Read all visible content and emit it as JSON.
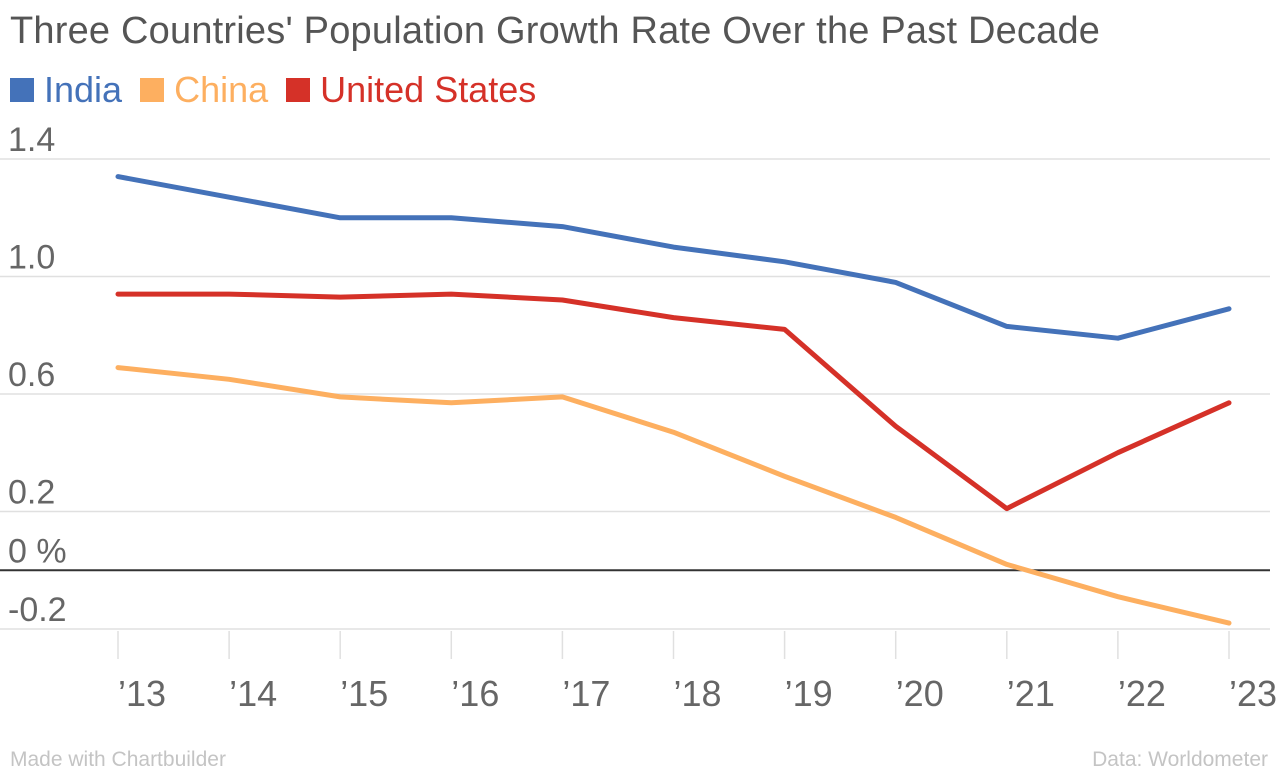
{
  "title": "Three Countries' Population Growth Rate Over the Past Decade",
  "footer": {
    "made_with": "Made with Chartbuilder",
    "source": "Data: Worldometer"
  },
  "colors": {
    "India": "#4472b9",
    "China": "#fdaf60",
    "United States": "#d53128",
    "grid": "#e0e0e0",
    "zero_line": "#333333",
    "tick_text": "#666666"
  },
  "chart_data": {
    "type": "line",
    "title": "Three Countries' Population Growth Rate Over the Past Decade",
    "xlabel": "",
    "ylabel": "",
    "categories": [
      "’13",
      "’14",
      "’15",
      "’16",
      "’17",
      "’18",
      "’19",
      "’20",
      "’21",
      "’22",
      "’23"
    ],
    "series": [
      {
        "name": "India",
        "color": "#4472b9",
        "values": [
          1.34,
          1.27,
          1.2,
          1.2,
          1.17,
          1.1,
          1.05,
          0.98,
          0.83,
          0.79,
          0.89
        ]
      },
      {
        "name": "China",
        "color": "#fdaf60",
        "values": [
          0.69,
          0.65,
          0.59,
          0.57,
          0.59,
          0.47,
          0.32,
          0.18,
          0.02,
          -0.09,
          -0.18
        ]
      },
      {
        "name": "United States",
        "color": "#d53128",
        "values": [
          0.94,
          0.94,
          0.93,
          0.94,
          0.92,
          0.86,
          0.82,
          0.49,
          0.21,
          0.4,
          0.57
        ]
      }
    ],
    "y_ticks": [
      {
        "value": 1.4,
        "label": "1.4"
      },
      {
        "value": 1.0,
        "label": "1.0"
      },
      {
        "value": 0.6,
        "label": "0.6"
      },
      {
        "value": 0.2,
        "label": "0.2"
      },
      {
        "value": 0,
        "label": "0 %"
      },
      {
        "value": -0.2,
        "label": "-0.2"
      }
    ],
    "ylim": [
      -0.2,
      1.4
    ],
    "grid": true,
    "legend_position": "top-left"
  }
}
